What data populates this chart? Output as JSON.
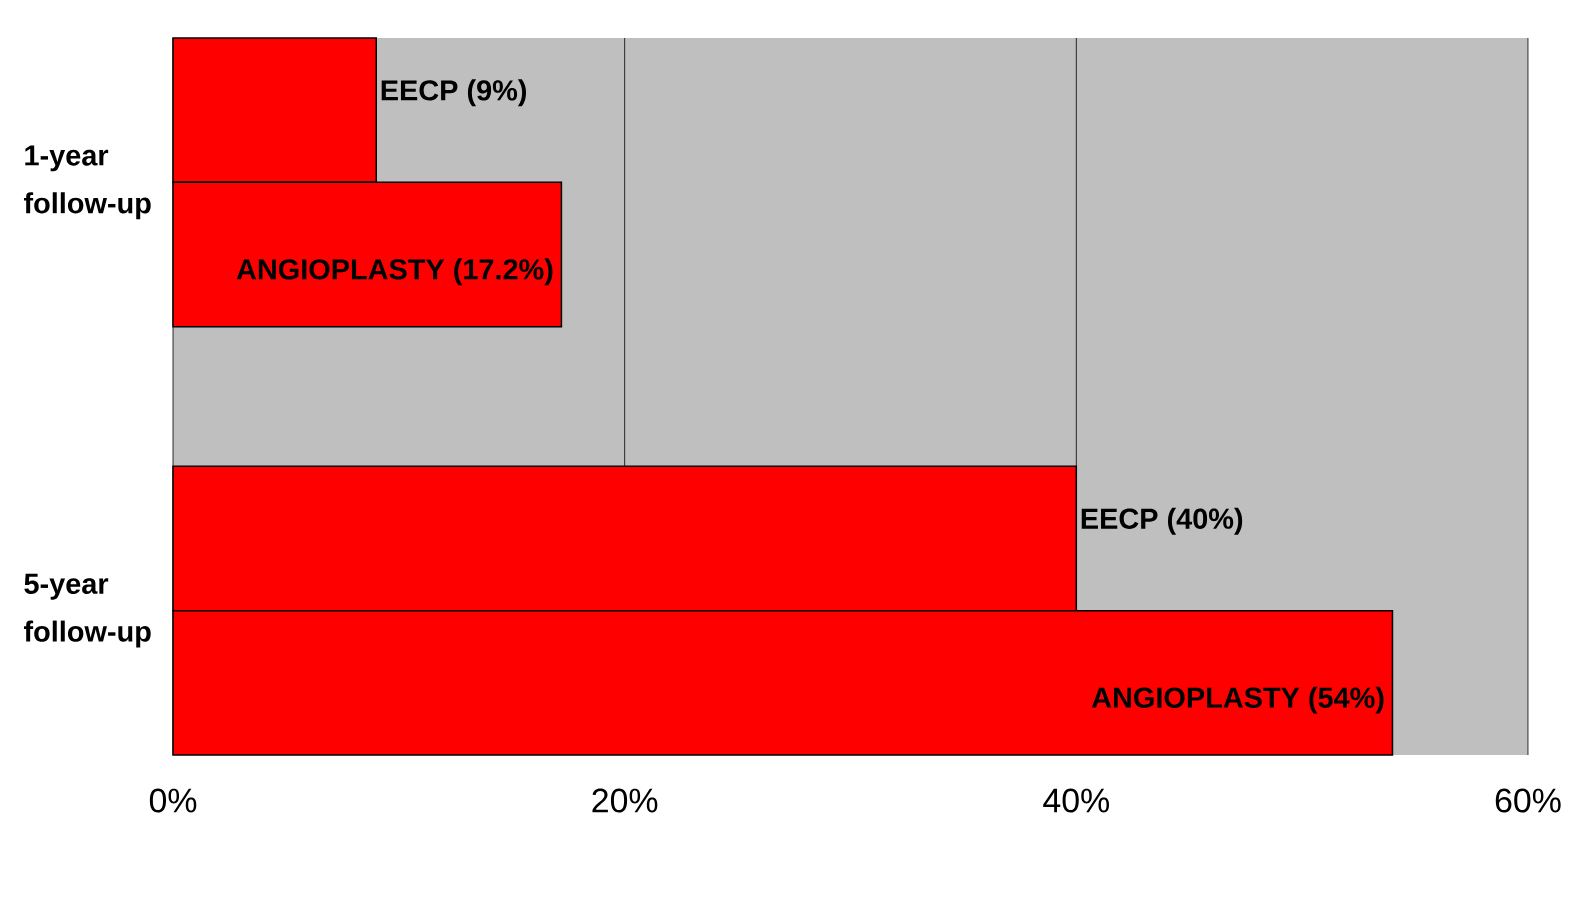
{
  "chart_data": {
    "type": "bar",
    "orientation": "horizontal",
    "categories": [
      "1-year follow-up",
      "5-year follow-up"
    ],
    "series": [
      {
        "name": "EECP",
        "color": "#ff0000",
        "values": [
          9,
          40
        ],
        "value_labels": [
          "(9%)",
          "(40%)"
        ]
      },
      {
        "name": "ANGIOPLASTY",
        "color": "#ff0000",
        "values": [
          17.2,
          54
        ],
        "value_labels": [
          "(17.2%)",
          "(54%)"
        ]
      }
    ],
    "xlim": [
      0,
      60
    ],
    "xticks": [
      {
        "value": 0,
        "label": "0%"
      },
      {
        "value": 20,
        "label": "20%"
      },
      {
        "value": 40,
        "label": "40%"
      },
      {
        "value": 60,
        "label": "60%"
      }
    ],
    "grid": "x"
  }
}
